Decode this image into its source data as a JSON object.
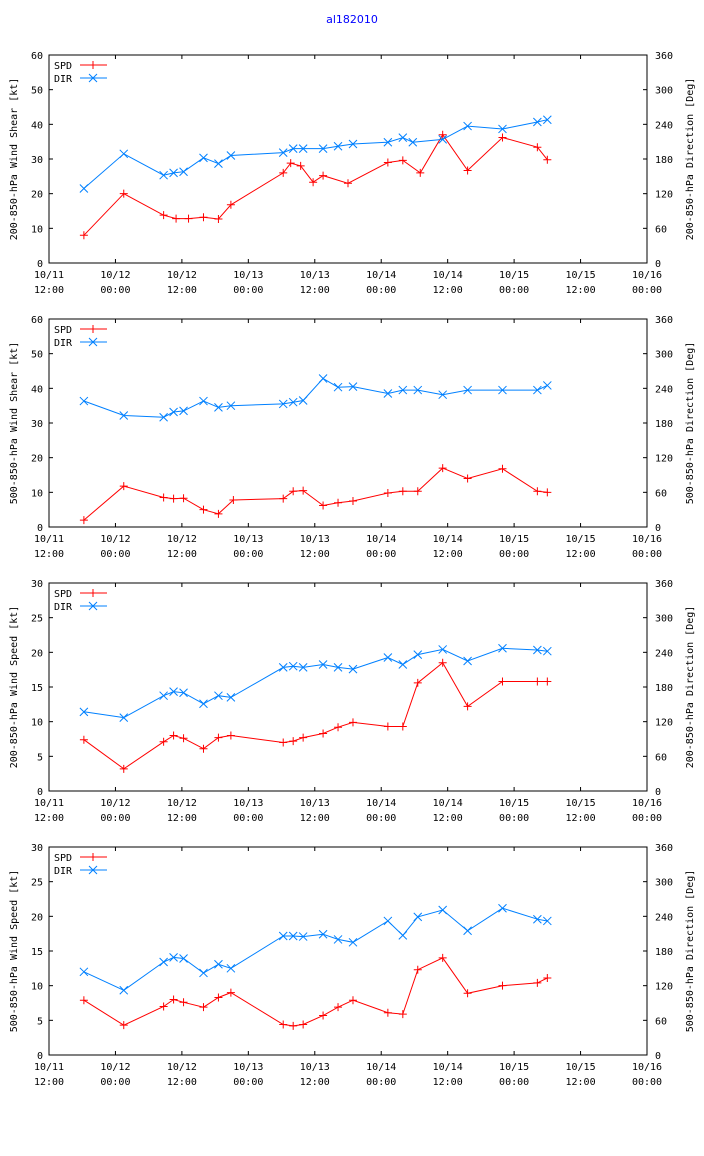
{
  "title": "al182010",
  "colors": {
    "spd": "#ff0000",
    "dir": "#0080ff",
    "axis": "#000000"
  },
  "chart_data": [
    {
      "type": "line",
      "ylabel": "200-850-hPa Wind Shear [kt]",
      "y2label": "200-850-hPa Direction [Deg]",
      "ylim": [
        0,
        60
      ],
      "y2lim": [
        0,
        360
      ],
      "yticks": [
        "0",
        "10",
        "20",
        "30",
        "40",
        "50",
        "60"
      ],
      "y2ticks": [
        "0",
        "60",
        "120",
        "180",
        "240",
        "300",
        "360"
      ],
      "xlim": [
        0,
        120
      ],
      "xticks": [
        {
          "date": "10/11",
          "time": "12:00"
        },
        {
          "date": "10/12",
          "time": "00:00"
        },
        {
          "date": "10/12",
          "time": "12:00"
        },
        {
          "date": "10/13",
          "time": "00:00"
        },
        {
          "date": "10/13",
          "time": "12:00"
        },
        {
          "date": "10/14",
          "time": "00:00"
        },
        {
          "date": "10/14",
          "time": "12:00"
        },
        {
          "date": "10/15",
          "time": "00:00"
        },
        {
          "date": "10/15",
          "time": "12:00"
        },
        {
          "date": "10/16",
          "time": "00:00"
        }
      ],
      "series": [
        {
          "name": "SPD",
          "axis": "left",
          "x": [
            7,
            15,
            23,
            25.5,
            28,
            31,
            34,
            36.5,
            47,
            48.5,
            50.5,
            53,
            55,
            60,
            68,
            71,
            74.5,
            79,
            84,
            91,
            98,
            100
          ],
          "values": [
            8,
            20,
            13.8,
            12.8,
            12.8,
            13.2,
            12.7,
            16.8,
            26,
            28.8,
            28,
            23.3,
            25.2,
            23,
            29,
            29.6,
            26,
            37,
            26.7,
            36.2,
            33.4,
            29.8
          ]
        },
        {
          "name": "DIR",
          "axis": "right",
          "x": [
            7,
            15,
            23,
            25,
            27,
            31,
            34,
            36.5,
            47,
            49,
            51,
            55,
            58,
            61,
            68,
            71,
            73,
            79,
            84,
            91,
            98,
            100
          ],
          "values": [
            129,
            189,
            152,
            156,
            158,
            182,
            172,
            186,
            191,
            198,
            198,
            198,
            202,
            206,
            209,
            217,
            209,
            214,
            237,
            232,
            244,
            248
          ]
        }
      ]
    },
    {
      "type": "line",
      "ylabel": "500-850-hPa Wind Shear [kt]",
      "y2label": "500-850-hPa Direction [Deg]",
      "ylim": [
        0,
        60
      ],
      "y2lim": [
        0,
        360
      ],
      "yticks": [
        "0",
        "10",
        "20",
        "30",
        "40",
        "50",
        "60"
      ],
      "y2ticks": [
        "0",
        "60",
        "120",
        "180",
        "240",
        "300",
        "360"
      ],
      "xlim": [
        0,
        120
      ],
      "xticks": [
        {
          "date": "10/11",
          "time": "12:00"
        },
        {
          "date": "10/12",
          "time": "00:00"
        },
        {
          "date": "10/12",
          "time": "12:00"
        },
        {
          "date": "10/13",
          "time": "00:00"
        },
        {
          "date": "10/13",
          "time": "12:00"
        },
        {
          "date": "10/14",
          "time": "00:00"
        },
        {
          "date": "10/14",
          "time": "12:00"
        },
        {
          "date": "10/15",
          "time": "00:00"
        },
        {
          "date": "10/15",
          "time": "12:00"
        },
        {
          "date": "10/16",
          "time": "00:00"
        }
      ],
      "series": [
        {
          "name": "SPD",
          "axis": "left",
          "x": [
            7,
            15,
            23,
            25,
            27,
            31,
            34,
            37,
            47,
            49,
            51,
            55,
            58,
            61,
            68,
            71,
            74,
            79,
            84,
            91,
            98,
            100
          ],
          "values": [
            2,
            11.8,
            8.5,
            8.2,
            8.3,
            5,
            3.8,
            7.8,
            8.2,
            10.3,
            10.5,
            6.2,
            7,
            7.5,
            9.8,
            10.3,
            10.3,
            17,
            14,
            16.8,
            10.3,
            10
          ]
        },
        {
          "name": "DIR",
          "axis": "right",
          "x": [
            7,
            15,
            23,
            25,
            27,
            31,
            34,
            36.5,
            47,
            49,
            51,
            55,
            58,
            61,
            68,
            71,
            74,
            79,
            84,
            91,
            98,
            100
          ],
          "values": [
            218,
            193,
            190,
            199,
            201,
            218,
            207,
            210,
            213,
            216,
            219,
            257,
            242,
            243,
            231,
            237,
            237,
            229,
            237,
            237,
            237,
            245
          ]
        }
      ]
    },
    {
      "type": "line",
      "ylabel": "200-850-hPa Wind Speed [kt]",
      "y2label": "200-850-hPa Direction [Deg]",
      "ylim": [
        0,
        30
      ],
      "y2lim": [
        0,
        360
      ],
      "yticks": [
        "0",
        "5",
        "10",
        "15",
        "20",
        "25",
        "30"
      ],
      "y2ticks": [
        "0",
        "60",
        "120",
        "180",
        "240",
        "300",
        "360"
      ],
      "xlim": [
        0,
        120
      ],
      "xticks": [
        {
          "date": "10/11",
          "time": "12:00"
        },
        {
          "date": "10/12",
          "time": "00:00"
        },
        {
          "date": "10/12",
          "time": "12:00"
        },
        {
          "date": "10/13",
          "time": "00:00"
        },
        {
          "date": "10/13",
          "time": "12:00"
        },
        {
          "date": "10/14",
          "time": "00:00"
        },
        {
          "date": "10/14",
          "time": "12:00"
        },
        {
          "date": "10/15",
          "time": "00:00"
        },
        {
          "date": "10/15",
          "time": "12:00"
        },
        {
          "date": "10/16",
          "time": "00:00"
        }
      ],
      "series": [
        {
          "name": "SPD",
          "axis": "left",
          "x": [
            7,
            15,
            23,
            25,
            27,
            31,
            34,
            36.5,
            47,
            49,
            51,
            55,
            58,
            61,
            68,
            71,
            74,
            79,
            84,
            91,
            98,
            100
          ],
          "values": [
            7.4,
            3.2,
            7.1,
            8,
            7.6,
            6.1,
            7.7,
            8,
            7,
            7.2,
            7.7,
            8.3,
            9.2,
            9.9,
            9.3,
            9.3,
            15.6,
            18.5,
            12.2,
            15.8,
            15.8,
            15.8
          ]
        },
        {
          "name": "DIR",
          "axis": "right",
          "x": [
            7,
            15,
            23,
            25,
            27,
            31,
            34,
            36.5,
            47,
            49,
            51,
            55,
            58,
            61,
            68,
            71,
            74,
            79,
            84,
            91,
            98,
            100
          ],
          "values": [
            137,
            127,
            165,
            172,
            170,
            151,
            165,
            162,
            214,
            216,
            214,
            219,
            214,
            211,
            231,
            219,
            236,
            245,
            225,
            247,
            244,
            242
          ]
        }
      ]
    },
    {
      "type": "line",
      "ylabel": "500-850-hPa Wind Speed [kt]",
      "y2label": "500-850-hPa Direction [Deg]",
      "ylim": [
        0,
        30
      ],
      "y2lim": [
        0,
        360
      ],
      "yticks": [
        "0",
        "5",
        "10",
        "15",
        "20",
        "25",
        "30"
      ],
      "y2ticks": [
        "0",
        "60",
        "120",
        "180",
        "240",
        "300",
        "360"
      ],
      "xlim": [
        0,
        120
      ],
      "xticks": [
        {
          "date": "10/11",
          "time": "12:00"
        },
        {
          "date": "10/12",
          "time": "00:00"
        },
        {
          "date": "10/12",
          "time": "12:00"
        },
        {
          "date": "10/13",
          "time": "00:00"
        },
        {
          "date": "10/13",
          "time": "12:00"
        },
        {
          "date": "10/14",
          "time": "00:00"
        },
        {
          "date": "10/14",
          "time": "12:00"
        },
        {
          "date": "10/15",
          "time": "00:00"
        },
        {
          "date": "10/15",
          "time": "12:00"
        },
        {
          "date": "10/16",
          "time": "00:00"
        }
      ],
      "series": [
        {
          "name": "SPD",
          "axis": "left",
          "x": [
            7,
            15,
            23,
            25,
            27,
            31,
            34,
            36.5,
            47,
            49,
            51,
            55,
            58,
            61,
            68,
            71,
            74,
            79,
            84,
            91,
            98,
            100
          ],
          "values": [
            7.9,
            4.3,
            7,
            8,
            7.6,
            6.9,
            8.3,
            9,
            4.4,
            4.2,
            4.4,
            5.7,
            6.9,
            7.9,
            6.1,
            5.9,
            12.3,
            14,
            8.9,
            10,
            10.4,
            11.1
          ]
        },
        {
          "name": "DIR",
          "axis": "right",
          "x": [
            7,
            15,
            23,
            25,
            27,
            31,
            34,
            36.5,
            47,
            49,
            51,
            55,
            58,
            61,
            68,
            71,
            74,
            79,
            84,
            91,
            98,
            100
          ],
          "values": [
            144,
            112,
            161,
            169,
            167,
            142,
            157,
            150,
            206,
            206,
            205,
            209,
            200,
            195,
            232,
            207,
            239,
            251,
            215,
            254,
            235,
            232
          ]
        }
      ]
    }
  ]
}
